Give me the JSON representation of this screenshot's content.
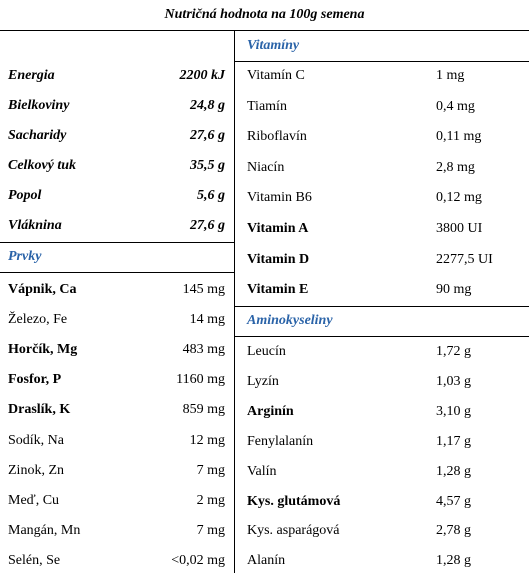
{
  "title": "Nutričná hodnota na 100g semena",
  "macros": [
    {
      "name": "Energia",
      "value": "2200 kJ"
    },
    {
      "name": "Bielkoviny",
      "value": "24,8 g"
    },
    {
      "name": "Sacharidy",
      "value": "27,6 g"
    },
    {
      "name": "Celkový tuk",
      "value": "35,5 g"
    },
    {
      "name": "Popol",
      "value": "5,6 g"
    },
    {
      "name": "Vláknina",
      "value": "27,6 g"
    }
  ],
  "minerals": {
    "header": "Prvky",
    "rows": [
      {
        "name": "Vápnik, Ca",
        "value": "145 mg",
        "bold": true
      },
      {
        "name": "Železo, Fe",
        "value": "14 mg",
        "bold": false
      },
      {
        "name": "Horčík, Mg",
        "value": "483 mg",
        "bold": true
      },
      {
        "name": "Fosfor, P",
        "value": "1160 mg",
        "bold": true
      },
      {
        "name": "Draslík, K",
        "value": "859 mg",
        "bold": true
      },
      {
        "name": "Sodík, Na",
        "value": "12 mg",
        "bold": false
      },
      {
        "name": "Zinok, Zn",
        "value": "7 mg",
        "bold": false
      },
      {
        "name": "Meď, Cu",
        "value": "2 mg",
        "bold": false
      },
      {
        "name": "Mangán, Mn",
        "value": "7 mg",
        "bold": false
      },
      {
        "name": "Selén, Se",
        "value": "<0,02 mg",
        "bold": false
      }
    ]
  },
  "vitamins": {
    "header": "Vitamíny",
    "rows": [
      {
        "name": "Vitamín C",
        "value": "1 mg",
        "bold": false
      },
      {
        "name": "Tiamín",
        "value": "0,4 mg",
        "bold": false
      },
      {
        "name": "Riboflavín",
        "value": "0,11 mg",
        "bold": false
      },
      {
        "name": "Niacín",
        "value": "2,8 mg",
        "bold": false
      },
      {
        "name": "Vitamin B6",
        "value": "0,12 mg",
        "bold": false
      },
      {
        "name": "Vitamin A",
        "value": "3800 UI",
        "bold": true
      },
      {
        "name": "Vitamin D",
        "value": "2277,5 UI",
        "bold": true
      },
      {
        "name": "Vitamin E",
        "value": "90 mg",
        "bold": true
      }
    ]
  },
  "amino_acids": {
    "header": "Aminokyseliny",
    "rows": [
      {
        "name": "Leucín",
        "value": "1,72 g",
        "bold": false
      },
      {
        "name": "Lyzín",
        "value": "1,03 g",
        "bold": false
      },
      {
        "name": "Arginín",
        "value": "3,10 g",
        "bold": true
      },
      {
        "name": "Fenylalanín",
        "value": "1,17 g",
        "bold": false
      },
      {
        "name": "Valín",
        "value": "1,28 g",
        "bold": false
      },
      {
        "name": "Kys. glutámová",
        "value": "4,57 g",
        "bold": true
      },
      {
        "name": "Kys. asparágová",
        "value": "2,78 g",
        "bold": false
      },
      {
        "name": "Alanín",
        "value": "1,28 g",
        "bold": false
      }
    ]
  }
}
